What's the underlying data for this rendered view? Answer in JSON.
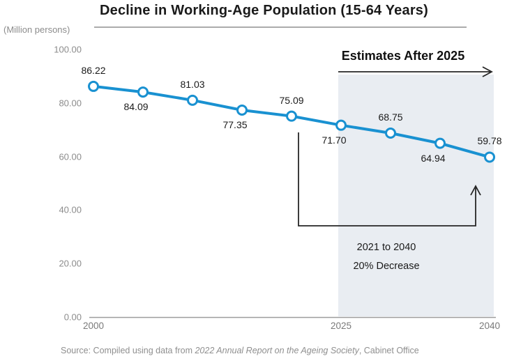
{
  "title": "Decline in Working-Age Population (15-64 Years)",
  "y_axis_unit": "(Million persons)",
  "source": {
    "prefix": "Source: Compiled using data from ",
    "italic": "2022 Annual Report on the Ageing Society",
    "suffix": ", Cabinet Office"
  },
  "chart_data": {
    "type": "line",
    "title": "Decline in Working-Age Population (15-64 Years)",
    "ylabel": "(Million persons)",
    "x": [
      2000,
      2005,
      2010,
      2015,
      2020,
      2025,
      2030,
      2035,
      2040
    ],
    "values": [
      86.22,
      84.09,
      81.03,
      77.35,
      75.09,
      71.7,
      68.75,
      64.94,
      59.78
    ],
    "data_labels": [
      "86.22",
      "84.09",
      "81.03",
      "77.35",
      "75.09",
      "71.70",
      "68.75",
      "64.94",
      "59.78"
    ],
    "label_positions": [
      "above",
      "below",
      "above",
      "below",
      "above",
      "below",
      "above",
      "below",
      "above"
    ],
    "ylim": [
      0,
      100
    ],
    "y_ticks": [
      100,
      80,
      60,
      40,
      20,
      0
    ],
    "y_tick_labels": [
      "100.00",
      "80.00",
      "60.00",
      "40.00",
      "20.00",
      "0.00"
    ],
    "x_tick_years": [
      2000,
      2025,
      2040
    ],
    "x_tick_labels": [
      "2000",
      "2025",
      "2040"
    ],
    "grid": "off",
    "line_color": "#1991d1",
    "marker": "open-circle",
    "estimates_region": {
      "label": "Estimates After 2025",
      "from_year": 2025,
      "to_year": 2040,
      "fill": "#e9edf2"
    },
    "annotation": {
      "line1": "2021 to 2040",
      "line2": "20% Decrease",
      "from_year": 2021,
      "to_year": 2040
    }
  }
}
